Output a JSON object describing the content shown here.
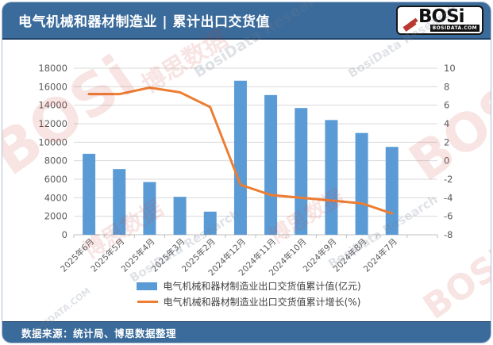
{
  "header": {
    "title": "电气机械和器材制造业 | 累计出口交货值",
    "logo": {
      "brand": "BOSi",
      "site": "BOSIDATA.COM"
    }
  },
  "footer": {
    "source": "数据来源：统计局、博思数据整理"
  },
  "watermark": {
    "brand": "BOSi",
    "cn": "博思数据",
    "en": "BosiData Research",
    "site": "BOSIDATA.COM"
  },
  "colors": {
    "header_bg": "#3a6b9b",
    "bar": "#5b9bd5",
    "line": "#ed7d31",
    "grid": "#d9d9d9",
    "axis_line": "#bfbfbf",
    "axis_text": "#595959",
    "watermark_red": "#c83e3a"
  },
  "chart_data": {
    "type": "bar",
    "subtype": "bar+line combo, dual axis",
    "title": "电气机械和器材制造业 | 累计出口交货值",
    "categories": [
      "2025年6月",
      "2025年5月",
      "2025年4月",
      "2025年3月",
      "2025年2月",
      "2024年12月",
      "2024年11月",
      "2024年10月",
      "2024年9月",
      "2024年8月",
      "2024年7月"
    ],
    "series": [
      {
        "name": "电气机械和器材制造业出口交货值累计值(亿元)",
        "type": "bar",
        "axis": "left",
        "color": "#5b9bd5",
        "values": [
          8750,
          7100,
          5700,
          4100,
          2500,
          16650,
          15100,
          13700,
          12400,
          11000,
          9500
        ]
      },
      {
        "name": "电气机械和器材制造业出口交货值累计增长(%)",
        "type": "line",
        "axis": "right",
        "color": "#ed7d31",
        "values": [
          7.2,
          7.2,
          7.9,
          7.4,
          5.8,
          -2.6,
          -3.7,
          -4.0,
          -4.3,
          -4.6,
          -5.7
        ]
      }
    ],
    "left_axis": {
      "min": 0,
      "max": 18000,
      "step": 2000,
      "label": "亿元"
    },
    "right_axis": {
      "min": -8,
      "max": 10,
      "step": 2,
      "label": "%"
    },
    "grid": true,
    "legend_position": "bottom"
  }
}
